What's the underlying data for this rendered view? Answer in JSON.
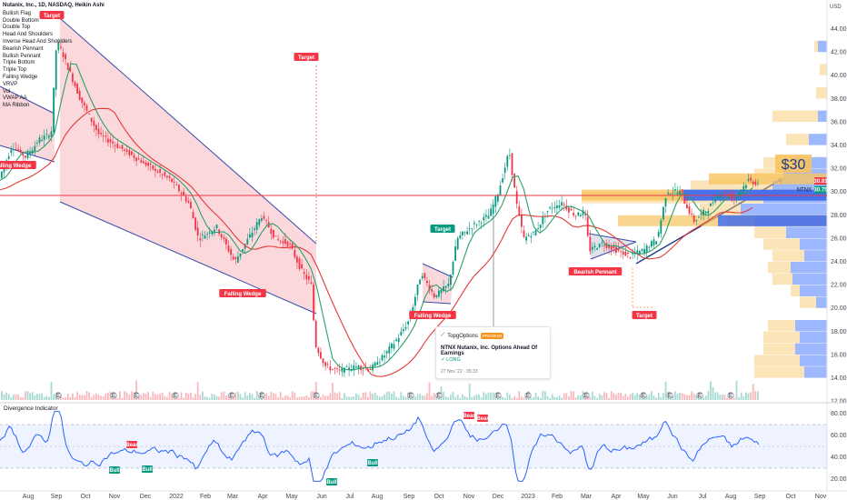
{
  "title": "Nutanix, Inc., 1D, NASDAQ, Heikin Ashi",
  "legend_items": [
    "Bullish Flag",
    "Double Bottom",
    "Double Top",
    "Head And Shoulders",
    "Inverse Head And Shoulders",
    "Bearish Pennant",
    "Bullish Pennant",
    "Triple Bottom",
    "Triple Top",
    "Falling Wedge",
    "VRVP",
    "Vol",
    "VWAP AA",
    "MA Ribbon"
  ],
  "currency": "USD",
  "price_axis": [
    "44.00",
    "42.00",
    "40.00",
    "38.00",
    "36.00",
    "34.00",
    "32.00",
    "30.00",
    "28.00",
    "26.00",
    "24.00",
    "22.00",
    "20.00",
    "18.00",
    "16.00",
    "14.00",
    "12.00"
  ],
  "price_tags": {
    "current": "30.81",
    "ntnx_label": "NTNX",
    "ntnx_value": "30.75"
  },
  "time_axis": [
    "Aug",
    "Sep",
    "Oct",
    "Nov",
    "Dec",
    "2022",
    "Feb",
    "Mar",
    "Apr",
    "May",
    "Jun",
    "Jul",
    "Aug",
    "Sep",
    "Oct",
    "Nov",
    "Dec",
    "2023",
    "Feb",
    "Mar",
    "Apr",
    "May",
    "Jun",
    "Jul",
    "Aug",
    "Sep",
    "Oct",
    "Nov"
  ],
  "pattern_labels": [
    "Target",
    "Falling Wedge",
    "Target",
    "Falling Wedge",
    "Target",
    "Falling Wedge",
    "Bearish Pennant",
    "Target"
  ],
  "annotation": "$30",
  "idea": {
    "author": "TopgOptions",
    "badge": "PREMIUM",
    "headline": "NTNX Nutanix, Inc. Options Ahead Of Earnings",
    "direction": "LONG",
    "date": "27 Nov '22 · 05:33"
  },
  "event_marker": "E",
  "divergence": {
    "title": "Divergence Indicator",
    "axis": [
      "80.00",
      "60.00",
      "40.00",
      "20.00"
    ],
    "labels": [
      "Bull",
      "Bear",
      "Bull",
      "Bull",
      "Bull",
      "Bear",
      "Bear"
    ]
  },
  "colors": {
    "bull": "#089981",
    "bear": "#f23645",
    "ma_slow": "#e53935",
    "ma_fast": "#2e9e6a",
    "wedge_fill": "#f8c8cc",
    "wedge_line": "#3949ab",
    "rsi": "#2962ff",
    "vrvp_up": "#2962ff",
    "vrvp_down": "#f7c35f"
  }
}
